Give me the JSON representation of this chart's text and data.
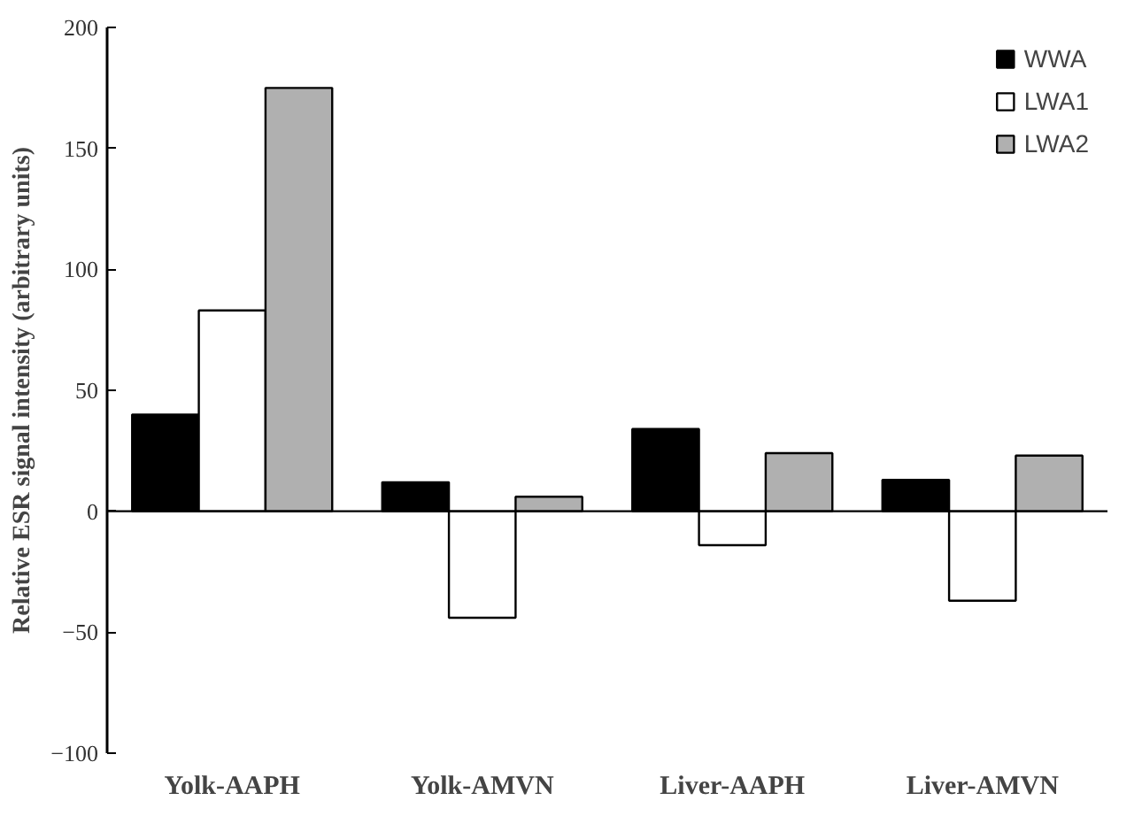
{
  "chart_data": {
    "type": "bar",
    "ylabel": "Relative ESR signal intensity (arbitrary units)",
    "categories": [
      "Yolk-AAPH",
      "Yolk-AMVN",
      "Liver-AAPH",
      "Liver-AMVN"
    ],
    "series": [
      {
        "name": "WWA",
        "color": "#000000",
        "values": [
          40,
          12,
          34,
          13
        ]
      },
      {
        "name": "LWA1",
        "color": "#ffffff",
        "values": [
          83,
          -44,
          -14,
          -37
        ]
      },
      {
        "name": "LWA2",
        "color": "#b0b0b0",
        "values": [
          175,
          6,
          24,
          23
        ]
      }
    ],
    "ylim": [
      -100,
      200
    ],
    "yticks": [
      -100,
      -50,
      0,
      50,
      100,
      150,
      200
    ],
    "legend": "top right"
  }
}
